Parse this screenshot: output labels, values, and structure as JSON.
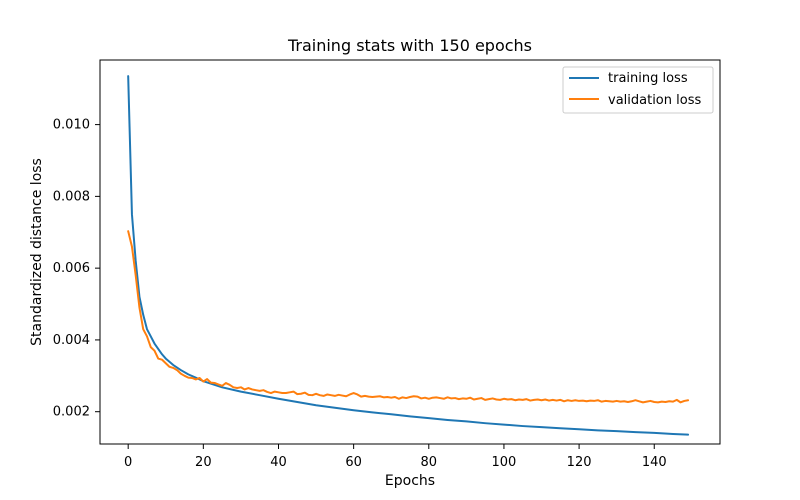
{
  "chart_data": {
    "type": "line",
    "title": "Training stats with 150 epochs",
    "xlabel": "Epochs",
    "ylabel": "Standardized distance loss",
    "xlim": [
      -7.5,
      157.5
    ],
    "ylim": [
      0.0011,
      0.0118
    ],
    "xticks": [
      0,
      20,
      40,
      60,
      80,
      100,
      120,
      140
    ],
    "yticks": [
      0.002,
      0.004,
      0.006,
      0.008,
      0.01
    ],
    "ytick_labels": [
      "0.002",
      "0.004",
      "0.006",
      "0.008",
      "0.010"
    ],
    "grid": false,
    "legend_position": "top-right",
    "series": [
      {
        "name": "training loss",
        "color": "#1f77b4",
        "points": [
          [
            0,
            0.01135
          ],
          [
            1,
            0.0075
          ],
          [
            2,
            0.0062
          ],
          [
            3,
            0.0052
          ],
          [
            4,
            0.0047
          ],
          [
            5,
            0.0043
          ],
          [
            6,
            0.0041
          ],
          [
            7,
            0.0039
          ],
          [
            8,
            0.00375
          ],
          [
            9,
            0.0036
          ],
          [
            10,
            0.00348
          ],
          [
            12,
            0.0033
          ],
          [
            14,
            0.00316
          ],
          [
            16,
            0.00304
          ],
          [
            18,
            0.00295
          ],
          [
            20,
            0.00285
          ],
          [
            25,
            0.00268
          ],
          [
            30,
            0.00256
          ],
          [
            35,
            0.00246
          ],
          [
            40,
            0.00236
          ],
          [
            45,
            0.00227
          ],
          [
            50,
            0.00218
          ],
          [
            55,
            0.00211
          ],
          [
            60,
            0.00204
          ],
          [
            65,
            0.00198
          ],
          [
            70,
            0.00193
          ],
          [
            75,
            0.00187
          ],
          [
            80,
            0.00182
          ],
          [
            85,
            0.00177
          ],
          [
            90,
            0.00173
          ],
          [
            95,
            0.00168
          ],
          [
            100,
            0.00164
          ],
          [
            105,
            0.0016
          ],
          [
            110,
            0.00157
          ],
          [
            115,
            0.00154
          ],
          [
            120,
            0.00151
          ],
          [
            125,
            0.00148
          ],
          [
            130,
            0.00146
          ],
          [
            135,
            0.00143
          ],
          [
            140,
            0.00141
          ],
          [
            145,
            0.00138
          ],
          [
            149,
            0.00136
          ]
        ]
      },
      {
        "name": "validation loss",
        "color": "#ff7f0e",
        "points": [
          [
            0,
            0.00703
          ],
          [
            1,
            0.0066
          ],
          [
            2,
            0.0058
          ],
          [
            3,
            0.0049
          ],
          [
            4,
            0.0043
          ],
          [
            5,
            0.0041
          ],
          [
            6,
            0.0038
          ],
          [
            7,
            0.0037
          ],
          [
            8,
            0.00348
          ],
          [
            9,
            0.00345
          ],
          [
            10,
            0.00335
          ],
          [
            11,
            0.00325
          ],
          [
            12,
            0.00322
          ],
          [
            13,
            0.00316
          ],
          [
            14,
            0.00306
          ],
          [
            15,
            0.003
          ],
          [
            16,
            0.00295
          ],
          [
            17,
            0.00294
          ],
          [
            18,
            0.0029
          ],
          [
            19,
            0.00294
          ],
          [
            20,
            0.00284
          ],
          [
            21,
            0.00291
          ],
          [
            22,
            0.00281
          ],
          [
            23,
            0.0028
          ],
          [
            24,
            0.00276
          ],
          [
            25,
            0.00272
          ],
          [
            26,
            0.0028
          ],
          [
            27,
            0.00275
          ],
          [
            28,
            0.00268
          ],
          [
            29,
            0.00266
          ],
          [
            30,
            0.00268
          ],
          [
            31,
            0.00262
          ],
          [
            32,
            0.00266
          ],
          [
            33,
            0.00262
          ],
          [
            34,
            0.0026
          ],
          [
            35,
            0.00258
          ],
          [
            36,
            0.0026
          ],
          [
            37,
            0.00255
          ],
          [
            38,
            0.00252
          ],
          [
            39,
            0.00256
          ],
          [
            40,
            0.00254
          ],
          [
            41,
            0.00252
          ],
          [
            42,
            0.00252
          ],
          [
            43,
            0.00254
          ],
          [
            44,
            0.00256
          ],
          [
            45,
            0.00249
          ],
          [
            46,
            0.0025
          ],
          [
            47,
            0.00253
          ],
          [
            48,
            0.00247
          ],
          [
            49,
            0.00246
          ],
          [
            50,
            0.0025
          ],
          [
            51,
            0.00246
          ],
          [
            52,
            0.00244
          ],
          [
            53,
            0.00248
          ],
          [
            54,
            0.00246
          ],
          [
            55,
            0.00244
          ],
          [
            56,
            0.00247
          ],
          [
            57,
            0.00245
          ],
          [
            58,
            0.00243
          ],
          [
            59,
            0.00248
          ],
          [
            60,
            0.00252
          ],
          [
            61,
            0.00248
          ],
          [
            62,
            0.00242
          ],
          [
            63,
            0.00244
          ],
          [
            64,
            0.00242
          ],
          [
            65,
            0.00241
          ],
          [
            66,
            0.00242
          ],
          [
            67,
            0.00243
          ],
          [
            68,
            0.0024
          ],
          [
            69,
            0.00241
          ],
          [
            70,
            0.00239
          ],
          [
            71,
            0.00241
          ],
          [
            72,
            0.00236
          ],
          [
            73,
            0.0024
          ],
          [
            74,
            0.00238
          ],
          [
            75,
            0.00241
          ],
          [
            76,
            0.00243
          ],
          [
            77,
            0.00242
          ],
          [
            78,
            0.00237
          ],
          [
            79,
            0.00239
          ],
          [
            80,
            0.00236
          ],
          [
            81,
            0.00239
          ],
          [
            82,
            0.0024
          ],
          [
            83,
            0.00238
          ],
          [
            84,
            0.00236
          ],
          [
            85,
            0.0024
          ],
          [
            86,
            0.00237
          ],
          [
            87,
            0.00238
          ],
          [
            88,
            0.00235
          ],
          [
            89,
            0.00237
          ],
          [
            90,
            0.00236
          ],
          [
            91,
            0.00239
          ],
          [
            92,
            0.00234
          ],
          [
            93,
            0.00236
          ],
          [
            94,
            0.00238
          ],
          [
            95,
            0.00233
          ],
          [
            96,
            0.00235
          ],
          [
            97,
            0.00237
          ],
          [
            98,
            0.00234
          ],
          [
            99,
            0.00233
          ],
          [
            100,
            0.00236
          ],
          [
            101,
            0.00234
          ],
          [
            102,
            0.00235
          ],
          [
            103,
            0.00232
          ],
          [
            104,
            0.00234
          ],
          [
            105,
            0.00233
          ],
          [
            106,
            0.00235
          ],
          [
            107,
            0.00231
          ],
          [
            108,
            0.00233
          ],
          [
            109,
            0.00234
          ],
          [
            110,
            0.00232
          ],
          [
            111,
            0.00234
          ],
          [
            112,
            0.00231
          ],
          [
            113,
            0.00233
          ],
          [
            114,
            0.00231
          ],
          [
            115,
            0.00233
          ],
          [
            116,
            0.00229
          ],
          [
            117,
            0.00232
          ],
          [
            118,
            0.0023
          ],
          [
            119,
            0.00232
          ],
          [
            120,
            0.0023
          ],
          [
            121,
            0.00231
          ],
          [
            122,
            0.00229
          ],
          [
            123,
            0.00231
          ],
          [
            124,
            0.0023
          ],
          [
            125,
            0.00232
          ],
          [
            126,
            0.00228
          ],
          [
            127,
            0.0023
          ],
          [
            128,
            0.00229
          ],
          [
            129,
            0.00228
          ],
          [
            130,
            0.0023
          ],
          [
            131,
            0.00228
          ],
          [
            132,
            0.00229
          ],
          [
            133,
            0.00227
          ],
          [
            134,
            0.00229
          ],
          [
            135,
            0.00232
          ],
          [
            136,
            0.00229
          ],
          [
            137,
            0.00226
          ],
          [
            138,
            0.00228
          ],
          [
            139,
            0.0023
          ],
          [
            140,
            0.00227
          ],
          [
            141,
            0.00226
          ],
          [
            142,
            0.00228
          ],
          [
            143,
            0.00227
          ],
          [
            144,
            0.00229
          ],
          [
            145,
            0.00228
          ],
          [
            146,
            0.00233
          ],
          [
            147,
            0.00226
          ],
          [
            148,
            0.0023
          ],
          [
            149,
            0.00232
          ]
        ]
      }
    ]
  }
}
